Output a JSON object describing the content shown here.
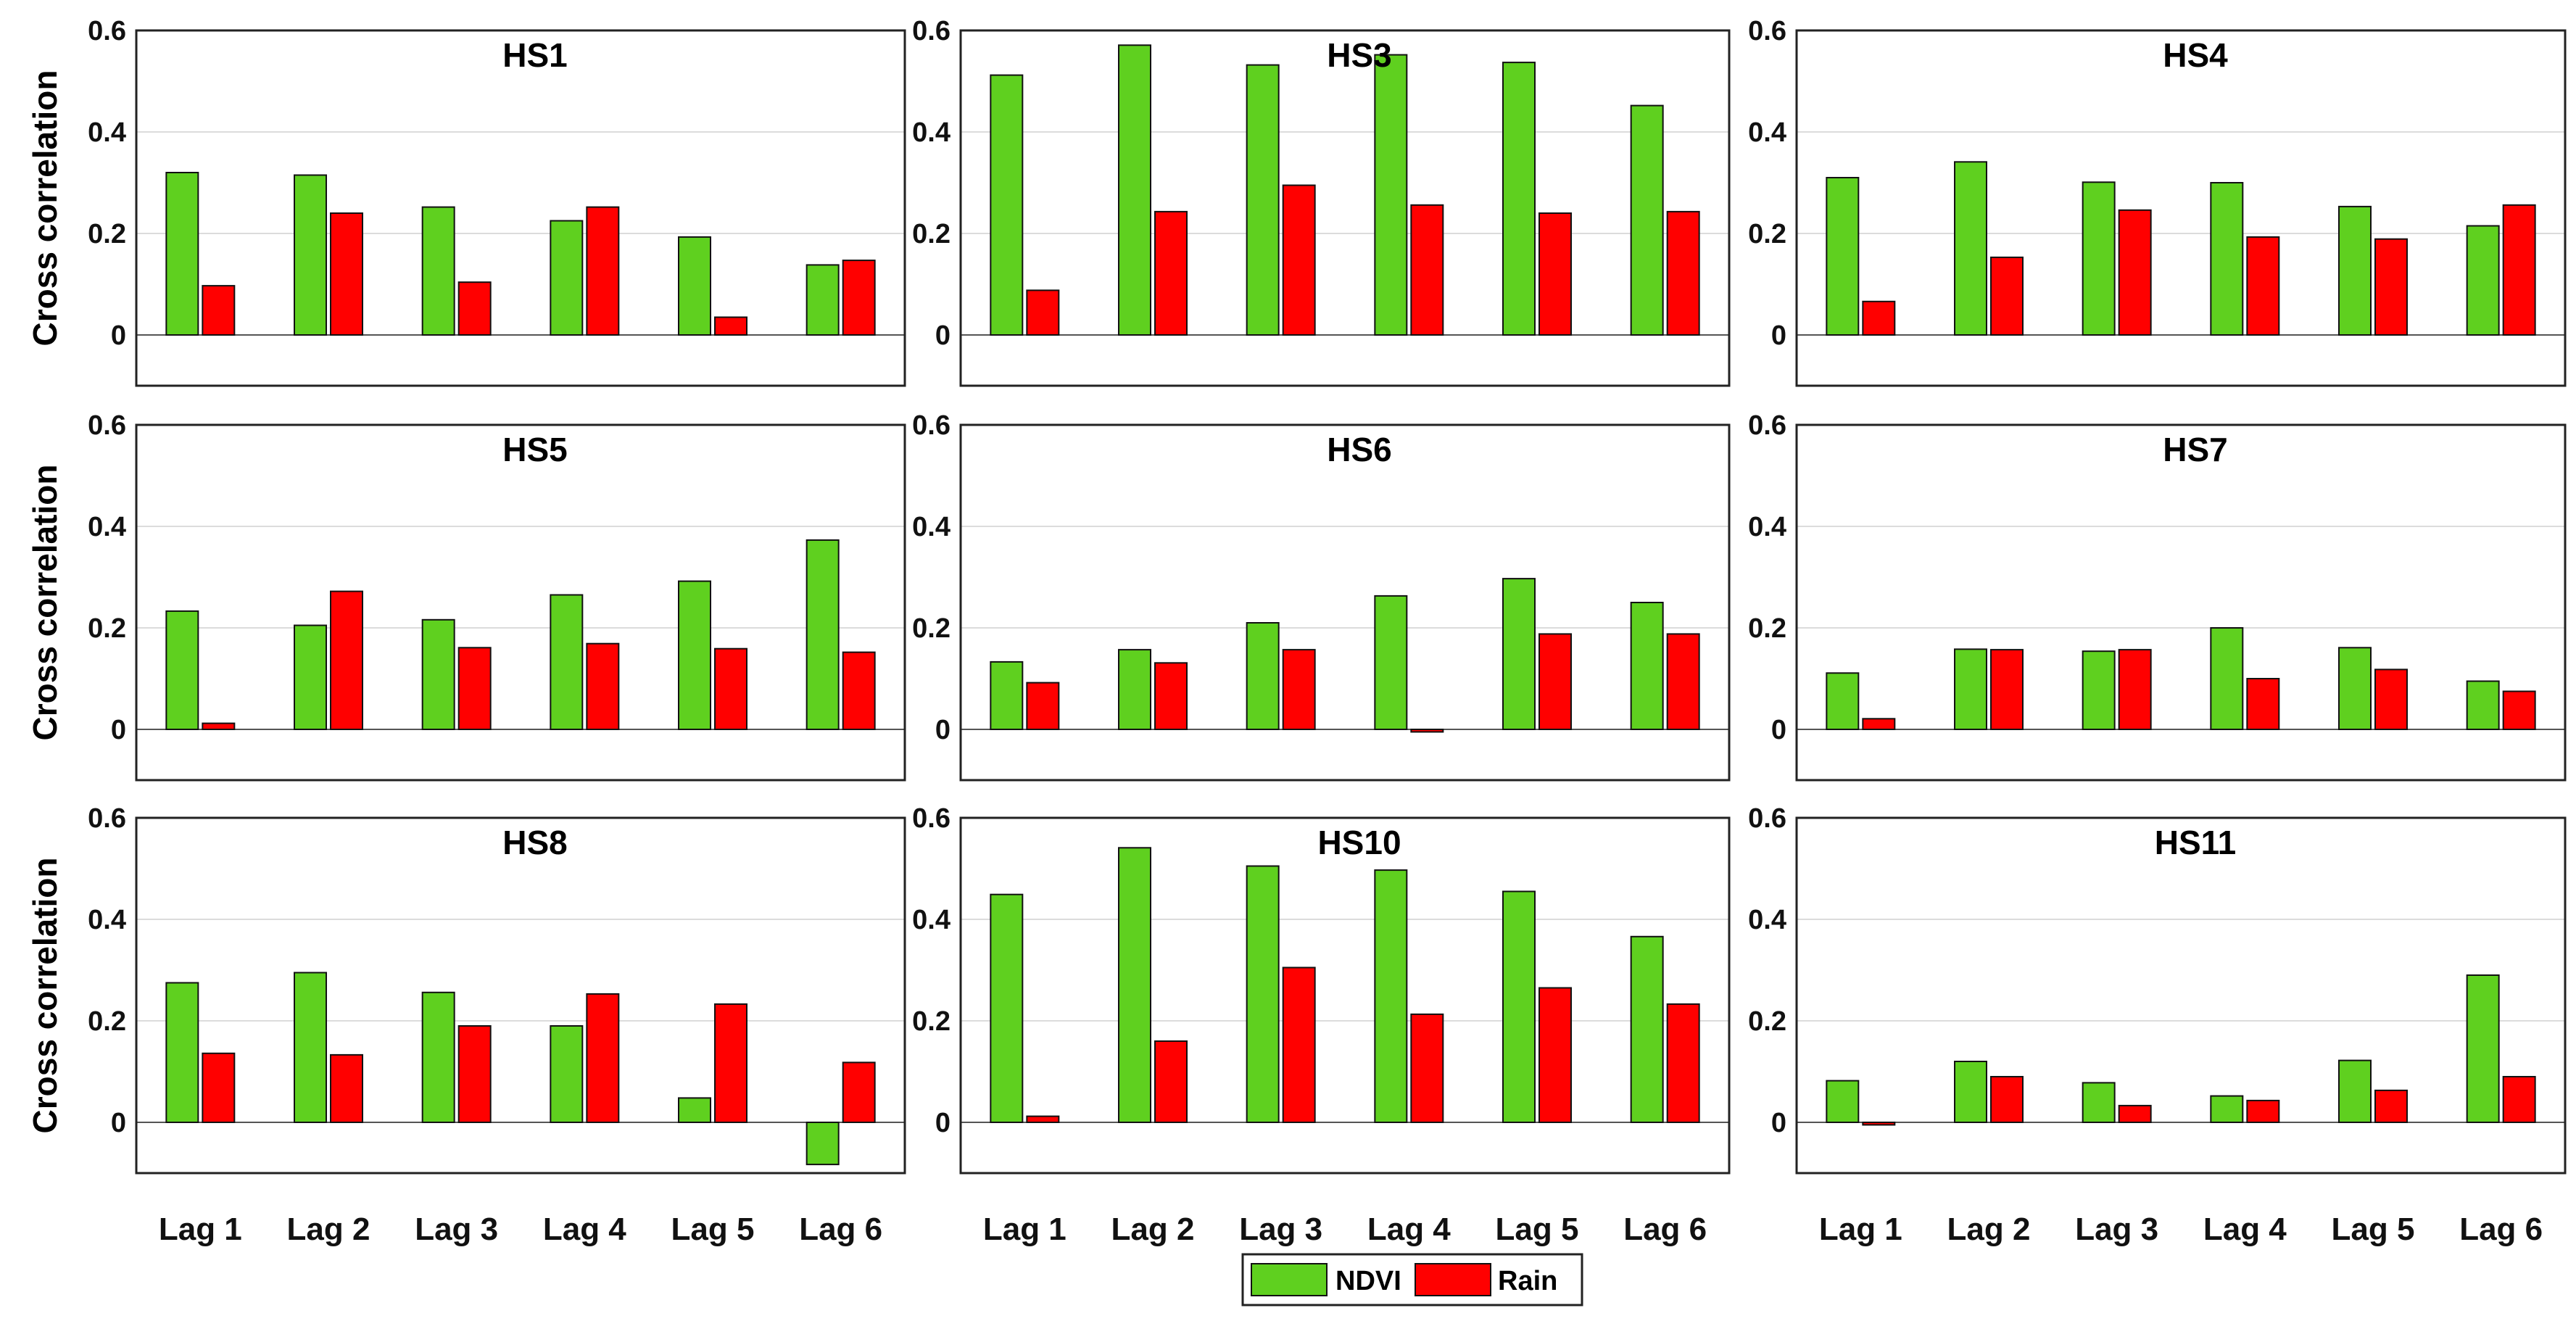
{
  "chart_data": {
    "type": "bar",
    "layout": "3x3 grid",
    "ylabel": "Cross correlation",
    "ylim": [
      -0.1,
      0.6
    ],
    "yticks": [
      "0",
      "0.2",
      "0.4",
      "0.6"
    ],
    "grid": true,
    "categories": [
      "Lag 1",
      "Lag 2",
      "Lag 3",
      "Lag 4",
      "Lag 5",
      "Lag 6"
    ],
    "legend": {
      "position": "bottom-center",
      "entries": [
        "NDVI",
        "Rain"
      ]
    },
    "colors": {
      "NDVI": "#5fd01f",
      "Rain": "#ff0000",
      "grid": "#dcdcdc",
      "axis": "#222222"
    },
    "panels": [
      {
        "title": "HS1",
        "series": [
          {
            "name": "NDVI",
            "values": [
              0.32,
              0.315,
              0.252,
              0.225,
              0.193,
              0.138
            ]
          },
          {
            "name": "Rain",
            "values": [
              0.097,
              0.24,
              0.104,
              0.252,
              0.035,
              0.147
            ]
          }
        ]
      },
      {
        "title": "HS3",
        "series": [
          {
            "name": "NDVI",
            "values": [
              0.512,
              0.571,
              0.532,
              0.552,
              0.537,
              0.452
            ]
          },
          {
            "name": "Rain",
            "values": [
              0.088,
              0.243,
              0.295,
              0.256,
              0.24,
              0.243
            ]
          }
        ]
      },
      {
        "title": "HS4",
        "series": [
          {
            "name": "NDVI",
            "values": [
              0.31,
              0.341,
              0.301,
              0.3,
              0.253,
              0.215
            ]
          },
          {
            "name": "Rain",
            "values": [
              0.066,
              0.153,
              0.246,
              0.193,
              0.189,
              0.256
            ]
          }
        ]
      },
      {
        "title": "HS5",
        "series": [
          {
            "name": "NDVI",
            "values": [
              0.233,
              0.205,
              0.216,
              0.265,
              0.292,
              0.373
            ]
          },
          {
            "name": "Rain",
            "values": [
              0.012,
              0.272,
              0.161,
              0.169,
              0.159,
              0.152
            ]
          }
        ]
      },
      {
        "title": "HS6",
        "series": [
          {
            "name": "NDVI",
            "values": [
              0.133,
              0.157,
              0.21,
              0.263,
              0.297,
              0.25
            ]
          },
          {
            "name": "Rain",
            "values": [
              0.092,
              0.131,
              0.157,
              -0.005,
              0.188,
              0.188
            ]
          }
        ]
      },
      {
        "title": "HS7",
        "series": [
          {
            "name": "NDVI",
            "values": [
              0.111,
              0.158,
              0.154,
              0.2,
              0.161,
              0.095
            ]
          },
          {
            "name": "Rain",
            "values": [
              0.021,
              0.157,
              0.157,
              0.1,
              0.118,
              0.075
            ]
          }
        ]
      },
      {
        "title": "HS8",
        "series": [
          {
            "name": "NDVI",
            "values": [
              0.275,
              0.295,
              0.256,
              0.19,
              0.048,
              -0.083
            ]
          },
          {
            "name": "Rain",
            "values": [
              0.136,
              0.133,
              0.19,
              0.253,
              0.233,
              0.118
            ]
          }
        ]
      },
      {
        "title": "HS10",
        "series": [
          {
            "name": "NDVI",
            "values": [
              0.449,
              0.541,
              0.505,
              0.497,
              0.455,
              0.366
            ]
          },
          {
            "name": "Rain",
            "values": [
              0.012,
              0.16,
              0.305,
              0.213,
              0.265,
              0.233
            ]
          }
        ]
      },
      {
        "title": "HS11",
        "series": [
          {
            "name": "NDVI",
            "values": [
              0.082,
              0.12,
              0.078,
              0.052,
              0.122,
              0.29
            ]
          },
          {
            "name": "Rain",
            "values": [
              -0.005,
              0.09,
              0.033,
              0.043,
              0.063,
              0.09
            ]
          }
        ]
      }
    ]
  }
}
